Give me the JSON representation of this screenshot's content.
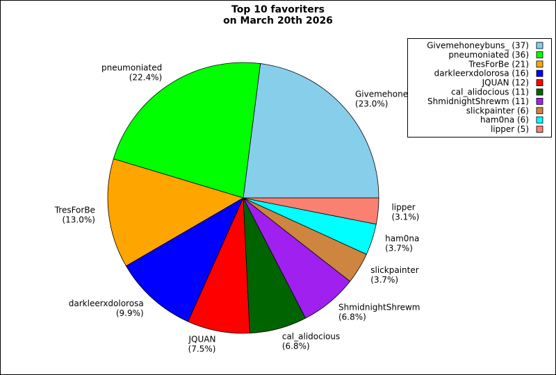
{
  "chart_data": {
    "type": "pie",
    "title": "Top 10 favoriters",
    "subtitle": "on March 20th 2026",
    "categories": [
      "Givemehoneybuns_",
      "pneumoniated",
      "TresForBe",
      "darkleerxdolorosa",
      "JQUAN",
      "cal_alidocious",
      "ShmidnightShrewm",
      "slickpainter",
      "ham0na",
      "lipper"
    ],
    "values": [
      37,
      36,
      21,
      16,
      12,
      11,
      11,
      6,
      6,
      5
    ],
    "value_labels": [
      "(23.0%)",
      "(22.4%)",
      "(13.0%)",
      "(9.9%)",
      "(7.5%)",
      "(6.8%)",
      "(6.8%)",
      "(3.7%)",
      "(3.7%)",
      "(3.1%)"
    ],
    "legend_labels": [
      "Givemehoneybuns_ (37)",
      "pneumoniated (36)",
      "TresForBe (21)",
      "darkleerxdolorosa (16)",
      "JQUAN (12)",
      "cal_alidocious (11)",
      "ShmidnightShrewm (11)",
      "slickpainter (6)",
      "ham0na (6)",
      "lipper (5)"
    ],
    "colors": [
      "#87ceeb",
      "#00ff00",
      "#ffa500",
      "#0000ff",
      "#ff0000",
      "#006400",
      "#a020f0",
      "#cd853f",
      "#00ffff",
      "#fa8072"
    ],
    "legend": "upper right"
  }
}
